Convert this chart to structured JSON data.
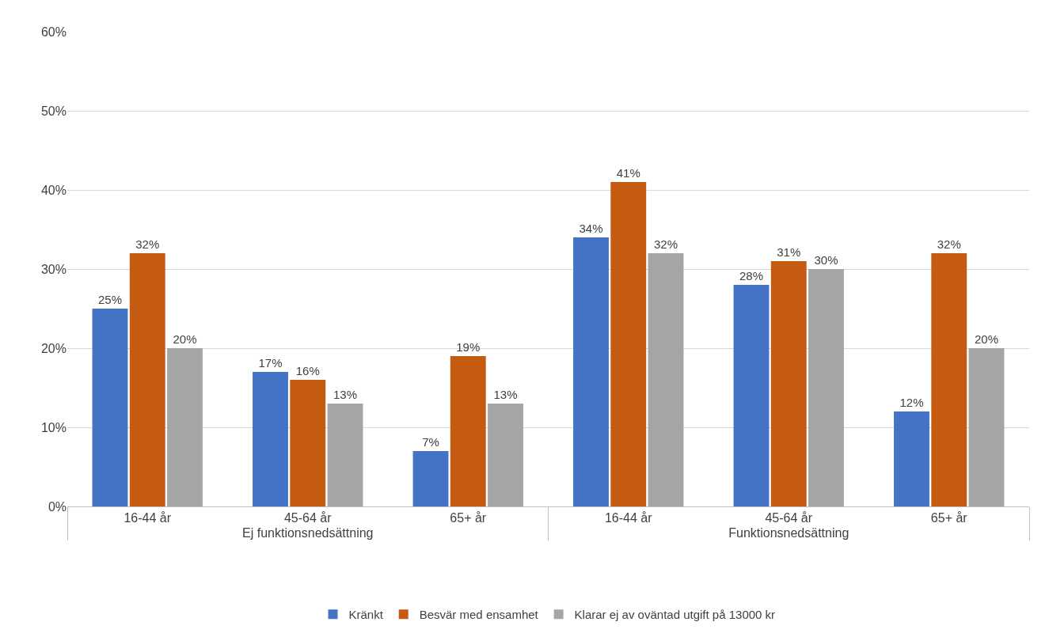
{
  "chart_data": {
    "type": "bar",
    "categories": [
      "16-44 år",
      "45-64 år",
      "65+ år",
      "16-44 år",
      "45-64 år",
      "65+ år"
    ],
    "annotations": [
      "Ej funktionsnedsättning",
      "Funktionsnedsättning"
    ],
    "series": [
      {
        "name": "Kränkt",
        "color": "#4472c4",
        "values": [
          25,
          17,
          7,
          34,
          28,
          12
        ],
        "value_labels": [
          "25%",
          "17%",
          "7%",
          "34%",
          "28%",
          "12%"
        ]
      },
      {
        "name": "Besvär med ensamhet",
        "color": "#c55a11",
        "values": [
          32,
          16,
          19,
          41,
          31,
          32
        ],
        "value_labels": [
          "32%",
          "16%",
          "19%",
          "41%",
          "31%",
          "32%"
        ]
      },
      {
        "name": "Klarar ej av oväntad utgift på 13000 kr",
        "color": "#a5a5a5",
        "values": [
          20,
          13,
          13,
          32,
          30,
          20
        ],
        "value_labels": [
          "20%",
          "13%",
          "13%",
          "32%",
          "30%",
          "20%"
        ]
      }
    ],
    "ylim": [
      0,
      60
    ],
    "yticks": [
      {
        "value": 0,
        "label": "0%"
      },
      {
        "value": 10,
        "label": "10%"
      },
      {
        "value": 20,
        "label": "20%"
      },
      {
        "value": 30,
        "label": "30%"
      },
      {
        "value": 40,
        "label": "40%"
      },
      {
        "value": 50,
        "label": "50%"
      },
      {
        "value": 60,
        "label": "60%"
      }
    ],
    "grid": "y",
    "legend": "bottom"
  }
}
